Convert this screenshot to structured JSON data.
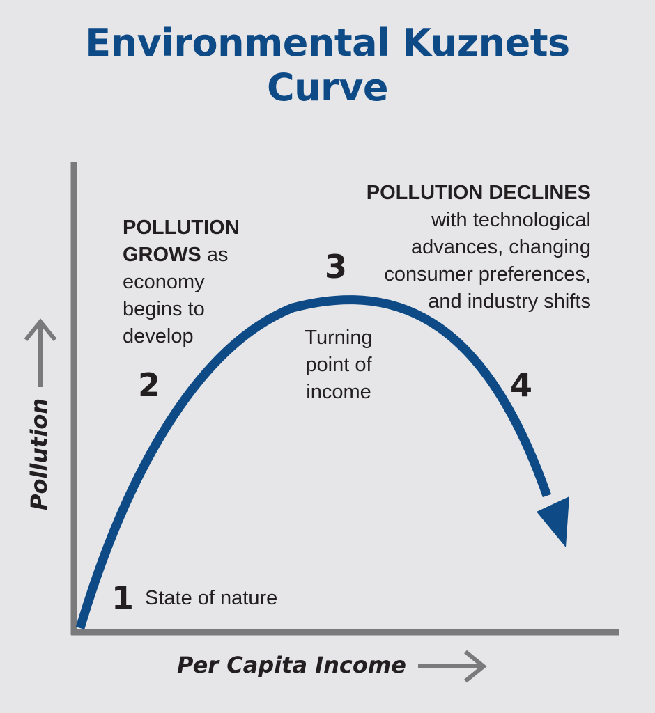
{
  "title": {
    "line1": "Environmental Kuznets",
    "line2": "Curve"
  },
  "axes": {
    "x_label": "Per Capita Income",
    "y_label": "Pollution"
  },
  "stages": {
    "s1": {
      "number": "1",
      "text": "State of nature"
    },
    "s2": {
      "number": "2",
      "bold_line1": "POLLUTION",
      "bold_line2": "GROWS",
      "rest_line2": " as",
      "line3": "economy",
      "line4": "begins to",
      "line5": "develop"
    },
    "s3": {
      "number": "3",
      "line1": "Turning",
      "line2": "point of",
      "line3": "income"
    },
    "s4": {
      "number": "4",
      "bold_line1": "POLLUTION DECLINES",
      "line2": "with technological",
      "line3": "advances, changing",
      "line4": "consumer preferences,",
      "line5": "and industry shifts"
    }
  },
  "colors": {
    "title": "#0d4a86",
    "curve": "#0d4a86",
    "axis": "#7a7a7c",
    "background": "#e6e6e8"
  },
  "icons": {
    "x_arrow": "right-arrow-icon",
    "y_arrow": "up-arrow-icon",
    "curve_arrow": "arrowhead-icon"
  }
}
